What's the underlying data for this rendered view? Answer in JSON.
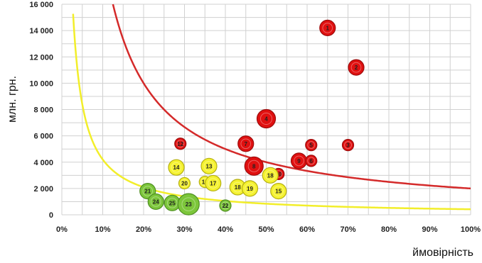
{
  "chart_data": {
    "type": "scatter",
    "xlabel": "ймовірність",
    "ylabel": "млн. грн.",
    "xlim": [
      0,
      100
    ],
    "ylim": [
      0,
      16000
    ],
    "x_ticks": [
      "0%",
      "10%",
      "20%",
      "30%",
      "40%",
      "50%",
      "60%",
      "70%",
      "80%",
      "90%",
      "100%"
    ],
    "y_ticks": [
      "0",
      "2 000",
      "4 000",
      "6 000",
      "8 000",
      "10 000",
      "12 000",
      "14 000",
      "16 000"
    ],
    "grid": true,
    "colors": {
      "red": "#e01010",
      "yellow": "#f5f230",
      "green": "#7cc63a",
      "curve_red": "#d42a2a",
      "curve_yellow": "#f2ee2a",
      "grid": "#d0d0d0"
    },
    "curves": [
      {
        "color": "red",
        "k": 2000,
        "x_from": 4,
        "x_to": 100
      },
      {
        "color": "yellow",
        "k": 420,
        "x_from": 2,
        "x_to": 100
      }
    ],
    "points": [
      {
        "label": "1",
        "x": 65,
        "y": 14200,
        "size": "m",
        "color": "red"
      },
      {
        "label": "2",
        "x": 72,
        "y": 11200,
        "size": "m",
        "color": "red"
      },
      {
        "label": "4",
        "x": 50,
        "y": 7300,
        "size": "l",
        "color": "red"
      },
      {
        "label": "5",
        "x": 61,
        "y": 5300,
        "size": "s",
        "color": "red"
      },
      {
        "label": "3",
        "x": 70,
        "y": 5300,
        "size": "s",
        "color": "red"
      },
      {
        "label": "7",
        "x": 45,
        "y": 5400,
        "size": "m",
        "color": "red"
      },
      {
        "label": "12",
        "x": 29,
        "y": 5400,
        "size": "s",
        "color": "red"
      },
      {
        "label": "8",
        "x": 47,
        "y": 3700,
        "size": "l",
        "color": "red"
      },
      {
        "label": "10",
        "x": 53,
        "y": 3100,
        "size": "s",
        "color": "red"
      },
      {
        "label": "9",
        "x": 58,
        "y": 4100,
        "size": "m",
        "color": "red"
      },
      {
        "label": "6",
        "x": 61,
        "y": 4100,
        "size": "s",
        "color": "red"
      },
      {
        "label": "14",
        "x": 28,
        "y": 3600,
        "size": "m",
        "color": "yellow"
      },
      {
        "label": "13",
        "x": 36,
        "y": 3700,
        "size": "m",
        "color": "yellow"
      },
      {
        "label": "18",
        "x": 51,
        "y": 3000,
        "size": "m",
        "color": "yellow"
      },
      {
        "label": "20",
        "x": 30,
        "y": 2400,
        "size": "s",
        "color": "yellow"
      },
      {
        "label": "16",
        "x": 35,
        "y": 2500,
        "size": "s",
        "color": "yellow"
      },
      {
        "label": "17",
        "x": 37,
        "y": 2400,
        "size": "m",
        "color": "yellow"
      },
      {
        "label": "18",
        "x": 43,
        "y": 2100,
        "size": "m",
        "color": "yellow"
      },
      {
        "label": "19",
        "x": 46,
        "y": 2000,
        "size": "m",
        "color": "yellow"
      },
      {
        "label": "15",
        "x": 53,
        "y": 1800,
        "size": "m",
        "color": "yellow"
      },
      {
        "label": "21",
        "x": 21,
        "y": 1800,
        "size": "m",
        "color": "green"
      },
      {
        "label": "24",
        "x": 23,
        "y": 1000,
        "size": "m",
        "color": "green"
      },
      {
        "label": "25",
        "x": 27,
        "y": 900,
        "size": "m",
        "color": "green"
      },
      {
        "label": "23",
        "x": 31,
        "y": 800,
        "size": "xl",
        "color": "green"
      },
      {
        "label": "22",
        "x": 40,
        "y": 700,
        "size": "s",
        "color": "green"
      }
    ]
  }
}
